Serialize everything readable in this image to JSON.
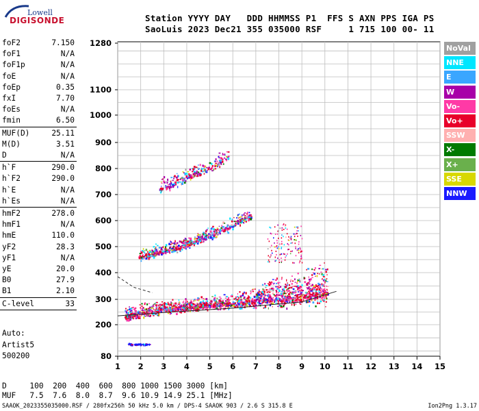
{
  "logo": {
    "line1": "Lowell",
    "line2": "DIGISONDE"
  },
  "header": {
    "labels_line": "Station YYYY DAY   DDD HHMMSS P1  FFS S AXN PPS IGA PS",
    "values_line": "SaoLuis 2023 Dec21 355 035000 RSF     1 715 100 00- 11"
  },
  "parameters": [
    {
      "name": "foF2",
      "value": "7.150"
    },
    {
      "name": "foF1",
      "value": "N/A"
    },
    {
      "name": "foF1p",
      "value": "N/A"
    },
    {
      "name": "foE",
      "value": "N/A"
    },
    {
      "name": "foEp",
      "value": "0.35"
    },
    {
      "name": "fxI",
      "value": "7.70"
    },
    {
      "name": "foEs",
      "value": "N/A"
    },
    {
      "name": "fmin",
      "value": "6.50"
    },
    {
      "name": "MUF(D)",
      "value": "25.11"
    },
    {
      "name": "M(D)",
      "value": "3.51"
    },
    {
      "name": "D",
      "value": "N/A"
    },
    {
      "name": "h`F",
      "value": "290.0"
    },
    {
      "name": "h`F2",
      "value": "290.0"
    },
    {
      "name": "h`E",
      "value": "N/A"
    },
    {
      "name": "h`Es",
      "value": "N/A"
    },
    {
      "name": "hmF2",
      "value": "278.0"
    },
    {
      "name": "hmF1",
      "value": "N/A"
    },
    {
      "name": "hmE",
      "value": "110.0"
    },
    {
      "name": "yF2",
      "value": "28.3"
    },
    {
      "name": "yF1",
      "value": "N/A"
    },
    {
      "name": "yE",
      "value": "20.0"
    },
    {
      "name": "B0",
      "value": "27.9"
    },
    {
      "name": "B1",
      "value": "2.10"
    },
    {
      "name": "C-level",
      "value": "33"
    }
  ],
  "autoscaling": {
    "line1": "Auto:",
    "line2": "Artist5",
    "line3": "500200"
  },
  "legend": [
    {
      "label": "NoVal",
      "color": "#a0a0a0"
    },
    {
      "label": "NNE",
      "color": "#00e6ff"
    },
    {
      "label": "E",
      "color": "#3aa6ff"
    },
    {
      "label": "W",
      "color": "#a800a8"
    },
    {
      "label": "Vo-",
      "color": "#ff3aa6"
    },
    {
      "label": "Vo+",
      "color": "#e8002a"
    },
    {
      "label": "SSW",
      "color": "#ffb0b0"
    },
    {
      "label": "X-",
      "color": "#007a00"
    },
    {
      "label": "X+",
      "color": "#6ab04c"
    },
    {
      "label": "SSE",
      "color": "#d8d800"
    },
    {
      "label": "NNW",
      "color": "#1a1aff"
    }
  ],
  "muf_table": {
    "d_line": "D     100  200  400  600  800 1000 1500 3000 [km]",
    "muf_line": "MUF   7.5  7.6  8.0  8.7  9.6 10.9 14.9 25.1 [MHz]"
  },
  "footer": {
    "file_info": "SAAOK_2023355035000.RSF / 280fx256h 50 kHz 5.0 km / DPS-4 SAAOK 903 / 2.6 S 315.8 E",
    "version": "Ion2Png 1.3.17"
  },
  "chart_data": {
    "type": "scatter",
    "xlim": [
      1,
      15
    ],
    "x_ticks": [
      1,
      2,
      3,
      4,
      5,
      6,
      7,
      8,
      9,
      10,
      11,
      12,
      13,
      14,
      15
    ],
    "y_ticks": [
      80,
      200,
      300,
      400,
      500,
      600,
      700,
      800,
      900,
      1000,
      1100,
      1280
    ],
    "grid": true,
    "traces": [
      {
        "name": "F-layer ordinary trace",
        "x": [
          1.4,
          2.0,
          3.0,
          4.0,
          5.0,
          6.0,
          7.0,
          8.0,
          9.0,
          10.0
        ],
        "y": [
          230,
          245,
          258,
          265,
          275,
          280,
          290,
          300,
          310,
          320
        ]
      },
      {
        "name": "second hop",
        "x": [
          1.9,
          3.0,
          4.0,
          5.0,
          6.0,
          6.5
        ],
        "y": [
          460,
          480,
          505,
          540,
          580,
          610
        ]
      },
      {
        "name": "third hop",
        "x": [
          2.8,
          3.5,
          4.0,
          5.0,
          5.7
        ],
        "y": [
          720,
          745,
          765,
          800,
          840
        ]
      },
      {
        "name": "low-altitude echoes",
        "x": [
          1.4,
          1.6,
          1.8,
          2.0,
          2.2
        ],
        "y": [
          126,
          126,
          126,
          126,
          126
        ]
      }
    ],
    "profile_line": {
      "x": [
        1.0,
        1.7,
        2.5
      ],
      "y": [
        385,
        345,
        325
      ]
    },
    "muf_line": {
      "x": [
        1.0,
        3.0,
        6.0,
        9.0,
        10.5
      ],
      "y": [
        235,
        248,
        265,
        290,
        330
      ]
    }
  }
}
